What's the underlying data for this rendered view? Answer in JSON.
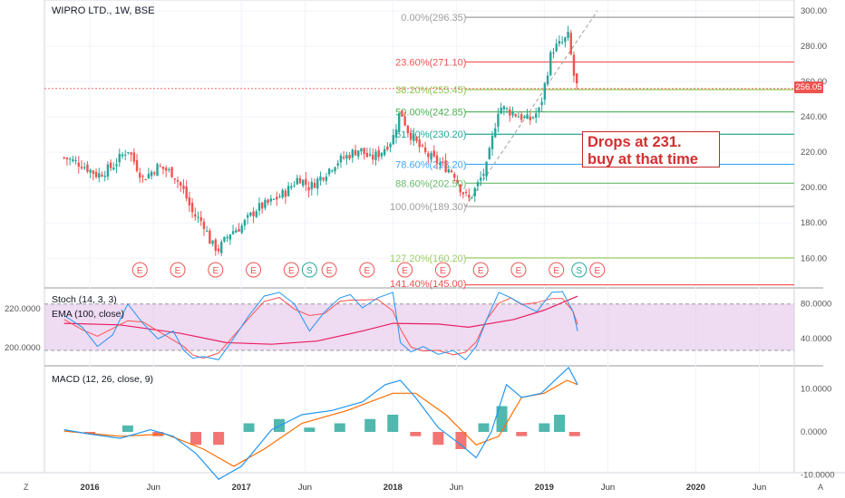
{
  "symbol_title": "WIPRO LTD., 1W, BSE",
  "annotation": {
    "line1": "Drops at 231.",
    "line2": "buy at that time"
  },
  "last_price": "256.05",
  "colors": {
    "up": "#26a69a",
    "down": "#ef5350",
    "stoch_k": "#2196f3",
    "stoch_d": "#ff5252",
    "ema": "#e91e63",
    "macd": "#2196f3",
    "signal": "#ff6d00",
    "band": "#e1bee7"
  },
  "corners": {
    "left": "Z",
    "right": "A"
  },
  "chart_data": [
    {
      "type": "candlestick",
      "title": "WIPRO LTD., 1W, BSE",
      "ylim": [
        150,
        305
      ],
      "y_ticks": [
        "300.00",
        "280.00",
        "260.00",
        "240.00",
        "220.00",
        "200.00",
        "180.00",
        "160.00"
      ],
      "x_ticks": [
        "2016",
        "Jun",
        "2017",
        "Jun",
        "2018",
        "Jun",
        "2019",
        "Jun",
        "2020",
        "Jun"
      ],
      "last": 256.05,
      "close_path": [
        [
          2015.83,
          217
        ],
        [
          2015.95,
          213
        ],
        [
          2016.05,
          207
        ],
        [
          2016.15,
          212
        ],
        [
          2016.25,
          222
        ],
        [
          2016.35,
          205
        ],
        [
          2016.45,
          212
        ],
        [
          2016.55,
          208
        ],
        [
          2016.62,
          198
        ],
        [
          2016.68,
          185
        ],
        [
          2016.75,
          180
        ],
        [
          2016.8,
          168
        ],
        [
          2016.85,
          165
        ],
        [
          2016.93,
          175
        ],
        [
          2017.0,
          178
        ],
        [
          2017.1,
          188
        ],
        [
          2017.2,
          192
        ],
        [
          2017.3,
          198
        ],
        [
          2017.38,
          206
        ],
        [
          2017.45,
          200
        ],
        [
          2017.55,
          208
        ],
        [
          2017.62,
          214
        ],
        [
          2017.7,
          218
        ],
        [
          2017.78,
          222
        ],
        [
          2017.85,
          216
        ],
        [
          2017.92,
          220
        ],
        [
          2018.0,
          228
        ],
        [
          2018.05,
          244
        ],
        [
          2018.1,
          232
        ],
        [
          2018.2,
          220
        ],
        [
          2018.3,
          214
        ],
        [
          2018.4,
          209
        ],
        [
          2018.45,
          199
        ],
        [
          2018.5,
          193
        ],
        [
          2018.55,
          200
        ],
        [
          2018.62,
          212
        ],
        [
          2018.7,
          246
        ],
        [
          2018.8,
          242
        ],
        [
          2018.9,
          238
        ],
        [
          2018.97,
          244
        ],
        [
          2019.05,
          278
        ],
        [
          2019.12,
          282
        ],
        [
          2019.16,
          286
        ],
        [
          2019.19,
          265
        ],
        [
          2019.22,
          256
        ]
      ],
      "fib_levels": [
        {
          "label": "0.00%(296.35)",
          "value": 296.35,
          "color": "#9e9e9e"
        },
        {
          "label": "23.60%(271.10)",
          "value": 271.1,
          "color": "#ef5350"
        },
        {
          "label": "38.20%(255.45)",
          "value": 255.45,
          "color": "#8bc34a"
        },
        {
          "label": "50.00%(242.85)",
          "value": 242.85,
          "color": "#4caf50"
        },
        {
          "label": "61.80%(230.20)",
          "value": 230.2,
          "color": "#26a69a"
        },
        {
          "label": "78.60%(213.20)",
          "value": 213.2,
          "color": "#42a5f5"
        },
        {
          "label": "88.60%(202.50)",
          "value": 202.5,
          "color": "#66bb6a"
        },
        {
          "label": "100.00%(189.30)",
          "value": 189.3,
          "color": "#9e9e9e"
        },
        {
          "label": "127.20%(160.20)",
          "value": 160.2,
          "color": "#9ccc65"
        },
        {
          "label": "141.40%(145.00)",
          "value": 145.0,
          "color": "#ef5350"
        }
      ],
      "events": [
        {
          "x": 2016.33,
          "type": "E"
        },
        {
          "x": 2016.58,
          "type": "E"
        },
        {
          "x": 2016.83,
          "type": "E"
        },
        {
          "x": 2017.08,
          "type": "E"
        },
        {
          "x": 2017.33,
          "type": "E"
        },
        {
          "x": 2017.45,
          "type": "S"
        },
        {
          "x": 2017.58,
          "type": "E"
        },
        {
          "x": 2017.83,
          "type": "E"
        },
        {
          "x": 2018.08,
          "type": "E"
        },
        {
          "x": 2018.33,
          "type": "E"
        },
        {
          "x": 2018.58,
          "type": "E"
        },
        {
          "x": 2018.83,
          "type": "E"
        },
        {
          "x": 2019.08,
          "type": "E"
        },
        {
          "x": 2019.23,
          "type": "S"
        },
        {
          "x": 2019.35,
          "type": "E"
        }
      ]
    },
    {
      "type": "line",
      "title": "Stoch (14, 3, 3)",
      "secondary_title": "EMA (100, close)",
      "left_ticks": [
        "220.0000",
        "200.0000"
      ],
      "right_ticks": [
        "80.0000",
        "40.0000"
      ],
      "bands": [
        80,
        20
      ],
      "k_series": [
        [
          2015.83,
          65
        ],
        [
          2015.95,
          50
        ],
        [
          2016.05,
          25
        ],
        [
          2016.15,
          40
        ],
        [
          2016.25,
          80
        ],
        [
          2016.35,
          55
        ],
        [
          2016.45,
          35
        ],
        [
          2016.55,
          45
        ],
        [
          2016.62,
          20
        ],
        [
          2016.68,
          10
        ],
        [
          2016.75,
          12
        ],
        [
          2016.85,
          8
        ],
        [
          2016.93,
          30
        ],
        [
          2017.05,
          65
        ],
        [
          2017.15,
          90
        ],
        [
          2017.25,
          95
        ],
        [
          2017.35,
          80
        ],
        [
          2017.45,
          45
        ],
        [
          2017.55,
          70
        ],
        [
          2017.65,
          88
        ],
        [
          2017.72,
          92
        ],
        [
          2017.8,
          75
        ],
        [
          2017.9,
          88
        ],
        [
          2018.0,
          95
        ],
        [
          2018.05,
          30
        ],
        [
          2018.12,
          18
        ],
        [
          2018.2,
          25
        ],
        [
          2018.3,
          15
        ],
        [
          2018.4,
          20
        ],
        [
          2018.48,
          8
        ],
        [
          2018.55,
          25
        ],
        [
          2018.62,
          60
        ],
        [
          2018.7,
          95
        ],
        [
          2018.78,
          88
        ],
        [
          2018.85,
          80
        ],
        [
          2018.95,
          70
        ],
        [
          2019.05,
          95
        ],
        [
          2019.12,
          96
        ],
        [
          2019.19,
          70
        ],
        [
          2019.22,
          45
        ]
      ],
      "ema_series": [
        [
          2015.83,
          55
        ],
        [
          2016.2,
          53
        ],
        [
          2016.6,
          42
        ],
        [
          2016.9,
          30
        ],
        [
          2017.2,
          28
        ],
        [
          2017.5,
          32
        ],
        [
          2017.8,
          45
        ],
        [
          2018.0,
          55
        ],
        [
          2018.3,
          54
        ],
        [
          2018.5,
          50
        ],
        [
          2018.8,
          60
        ],
        [
          2019.0,
          72
        ],
        [
          2019.22,
          90
        ]
      ]
    },
    {
      "type": "line",
      "title": "MACD (12, 26, close, 9)",
      "right_ticks": [
        "10.0000",
        "0.0000",
        "-10.0000"
      ],
      "macd_series": [
        [
          2015.83,
          0.5
        ],
        [
          2016.0,
          -0.5
        ],
        [
          2016.2,
          -1.5
        ],
        [
          2016.4,
          0.5
        ],
        [
          2016.55,
          -1
        ],
        [
          2016.7,
          -5
        ],
        [
          2016.85,
          -11
        ],
        [
          2017.0,
          -8
        ],
        [
          2017.2,
          0.5
        ],
        [
          2017.4,
          4
        ],
        [
          2017.6,
          5
        ],
        [
          2017.8,
          7
        ],
        [
          2017.95,
          11
        ],
        [
          2018.05,
          12
        ],
        [
          2018.15,
          8
        ],
        [
          2018.3,
          1
        ],
        [
          2018.45,
          -3
        ],
        [
          2018.55,
          -6
        ],
        [
          2018.65,
          0
        ],
        [
          2018.75,
          11
        ],
        [
          2018.85,
          8
        ],
        [
          2018.98,
          9
        ],
        [
          2019.1,
          13
        ],
        [
          2019.16,
          15
        ],
        [
          2019.22,
          11
        ]
      ],
      "signal_series": [
        [
          2015.83,
          0.2
        ],
        [
          2016.2,
          -1
        ],
        [
          2016.5,
          -0.5
        ],
        [
          2016.75,
          -4
        ],
        [
          2016.95,
          -8
        ],
        [
          2017.15,
          -4
        ],
        [
          2017.4,
          2
        ],
        [
          2017.7,
          5
        ],
        [
          2018.0,
          9
        ],
        [
          2018.15,
          9
        ],
        [
          2018.35,
          4
        ],
        [
          2018.55,
          -3
        ],
        [
          2018.7,
          -1
        ],
        [
          2018.85,
          8
        ],
        [
          2019.0,
          9
        ],
        [
          2019.15,
          12
        ],
        [
          2019.22,
          11
        ]
      ],
      "histogram": [
        [
          2016.0,
          -0.5
        ],
        [
          2016.25,
          1.5
        ],
        [
          2016.45,
          -1
        ],
        [
          2016.7,
          -3
        ],
        [
          2016.85,
          -3
        ],
        [
          2017.05,
          2
        ],
        [
          2017.25,
          3
        ],
        [
          2017.45,
          1
        ],
        [
          2017.65,
          2
        ],
        [
          2017.85,
          3
        ],
        [
          2018.0,
          4
        ],
        [
          2018.15,
          -1
        ],
        [
          2018.3,
          -3
        ],
        [
          2018.45,
          -4
        ],
        [
          2018.6,
          2
        ],
        [
          2018.72,
          6
        ],
        [
          2018.85,
          -1
        ],
        [
          2019.0,
          2
        ],
        [
          2019.1,
          4
        ],
        [
          2019.2,
          -1
        ]
      ]
    }
  ]
}
